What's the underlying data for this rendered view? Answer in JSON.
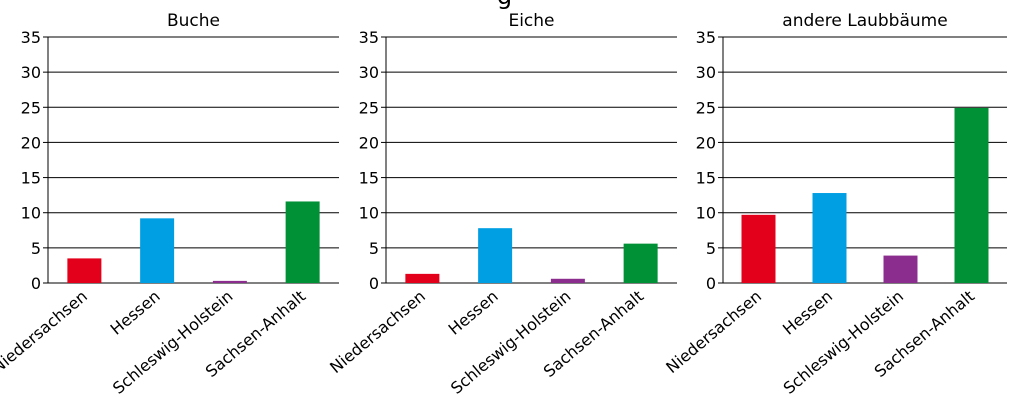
{
  "figure": {
    "partial_heading": "g"
  },
  "chart_data": [
    {
      "type": "bar",
      "title": "Buche",
      "categories": [
        "Niedersachsen",
        "Hessen",
        "Schleswig-Holstein",
        "Sachsen-Anhalt"
      ],
      "values": [
        3.5,
        9.2,
        0.3,
        11.6
      ],
      "colors": [
        "#e2001a",
        "#009fe3",
        "#8b2c8f",
        "#009036"
      ],
      "ylim": [
        0,
        35
      ],
      "yticks": [
        0,
        5,
        10,
        15,
        20,
        25,
        30,
        35
      ],
      "grid": true,
      "legend": "none"
    },
    {
      "type": "bar",
      "title": "Eiche",
      "categories": [
        "Niedersachsen",
        "Hessen",
        "Schleswig-Holstein",
        "Sachsen-Anhalt"
      ],
      "values": [
        1.3,
        7.8,
        0.6,
        5.6
      ],
      "colors": [
        "#e2001a",
        "#009fe3",
        "#8b2c8f",
        "#009036"
      ],
      "ylim": [
        0,
        35
      ],
      "yticks": [
        0,
        5,
        10,
        15,
        20,
        25,
        30,
        35
      ],
      "grid": true,
      "legend": "none"
    },
    {
      "type": "bar",
      "title": "andere Laubbäume",
      "categories": [
        "Niedersachsen",
        "Hessen",
        "Schleswig-Holstein",
        "Sachsen-Anhalt"
      ],
      "values": [
        9.7,
        12.8,
        3.9,
        24.9
      ],
      "colors": [
        "#e2001a",
        "#009fe3",
        "#8b2c8f",
        "#009036"
      ],
      "ylim": [
        0,
        35
      ],
      "yticks": [
        0,
        5,
        10,
        15,
        20,
        25,
        30,
        35
      ],
      "grid": true,
      "legend": "none"
    }
  ]
}
